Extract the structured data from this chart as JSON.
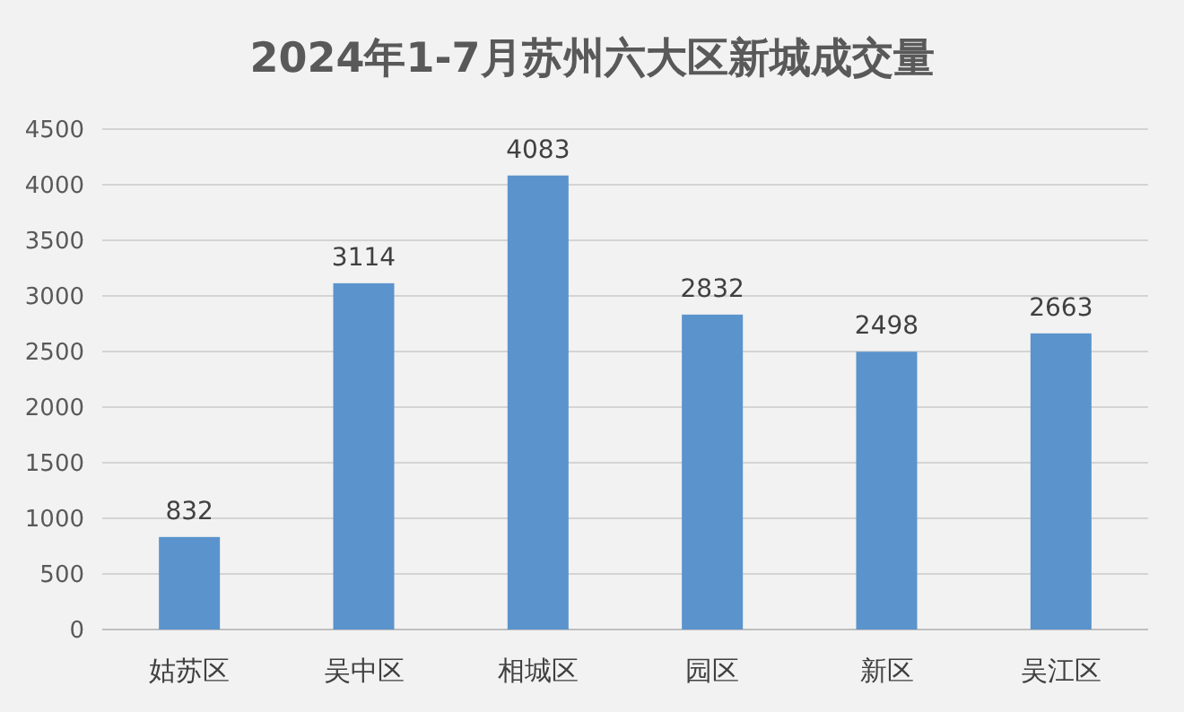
{
  "chart_data": {
    "type": "bar",
    "title": "2024年1-7月苏州六大区新城成交量",
    "categories": [
      "姑苏区",
      "吴中区",
      "相城区",
      "园区",
      "新区",
      "吴江区"
    ],
    "values": [
      832,
      3114,
      4083,
      2832,
      2498,
      2663
    ],
    "color": "#5b93cc",
    "ylim": [
      0,
      4500
    ],
    "yticks": [
      0,
      500,
      1000,
      1500,
      2000,
      2500,
      3000,
      3500,
      4000,
      4500
    ],
    "grid": "y",
    "data_labels": true
  }
}
